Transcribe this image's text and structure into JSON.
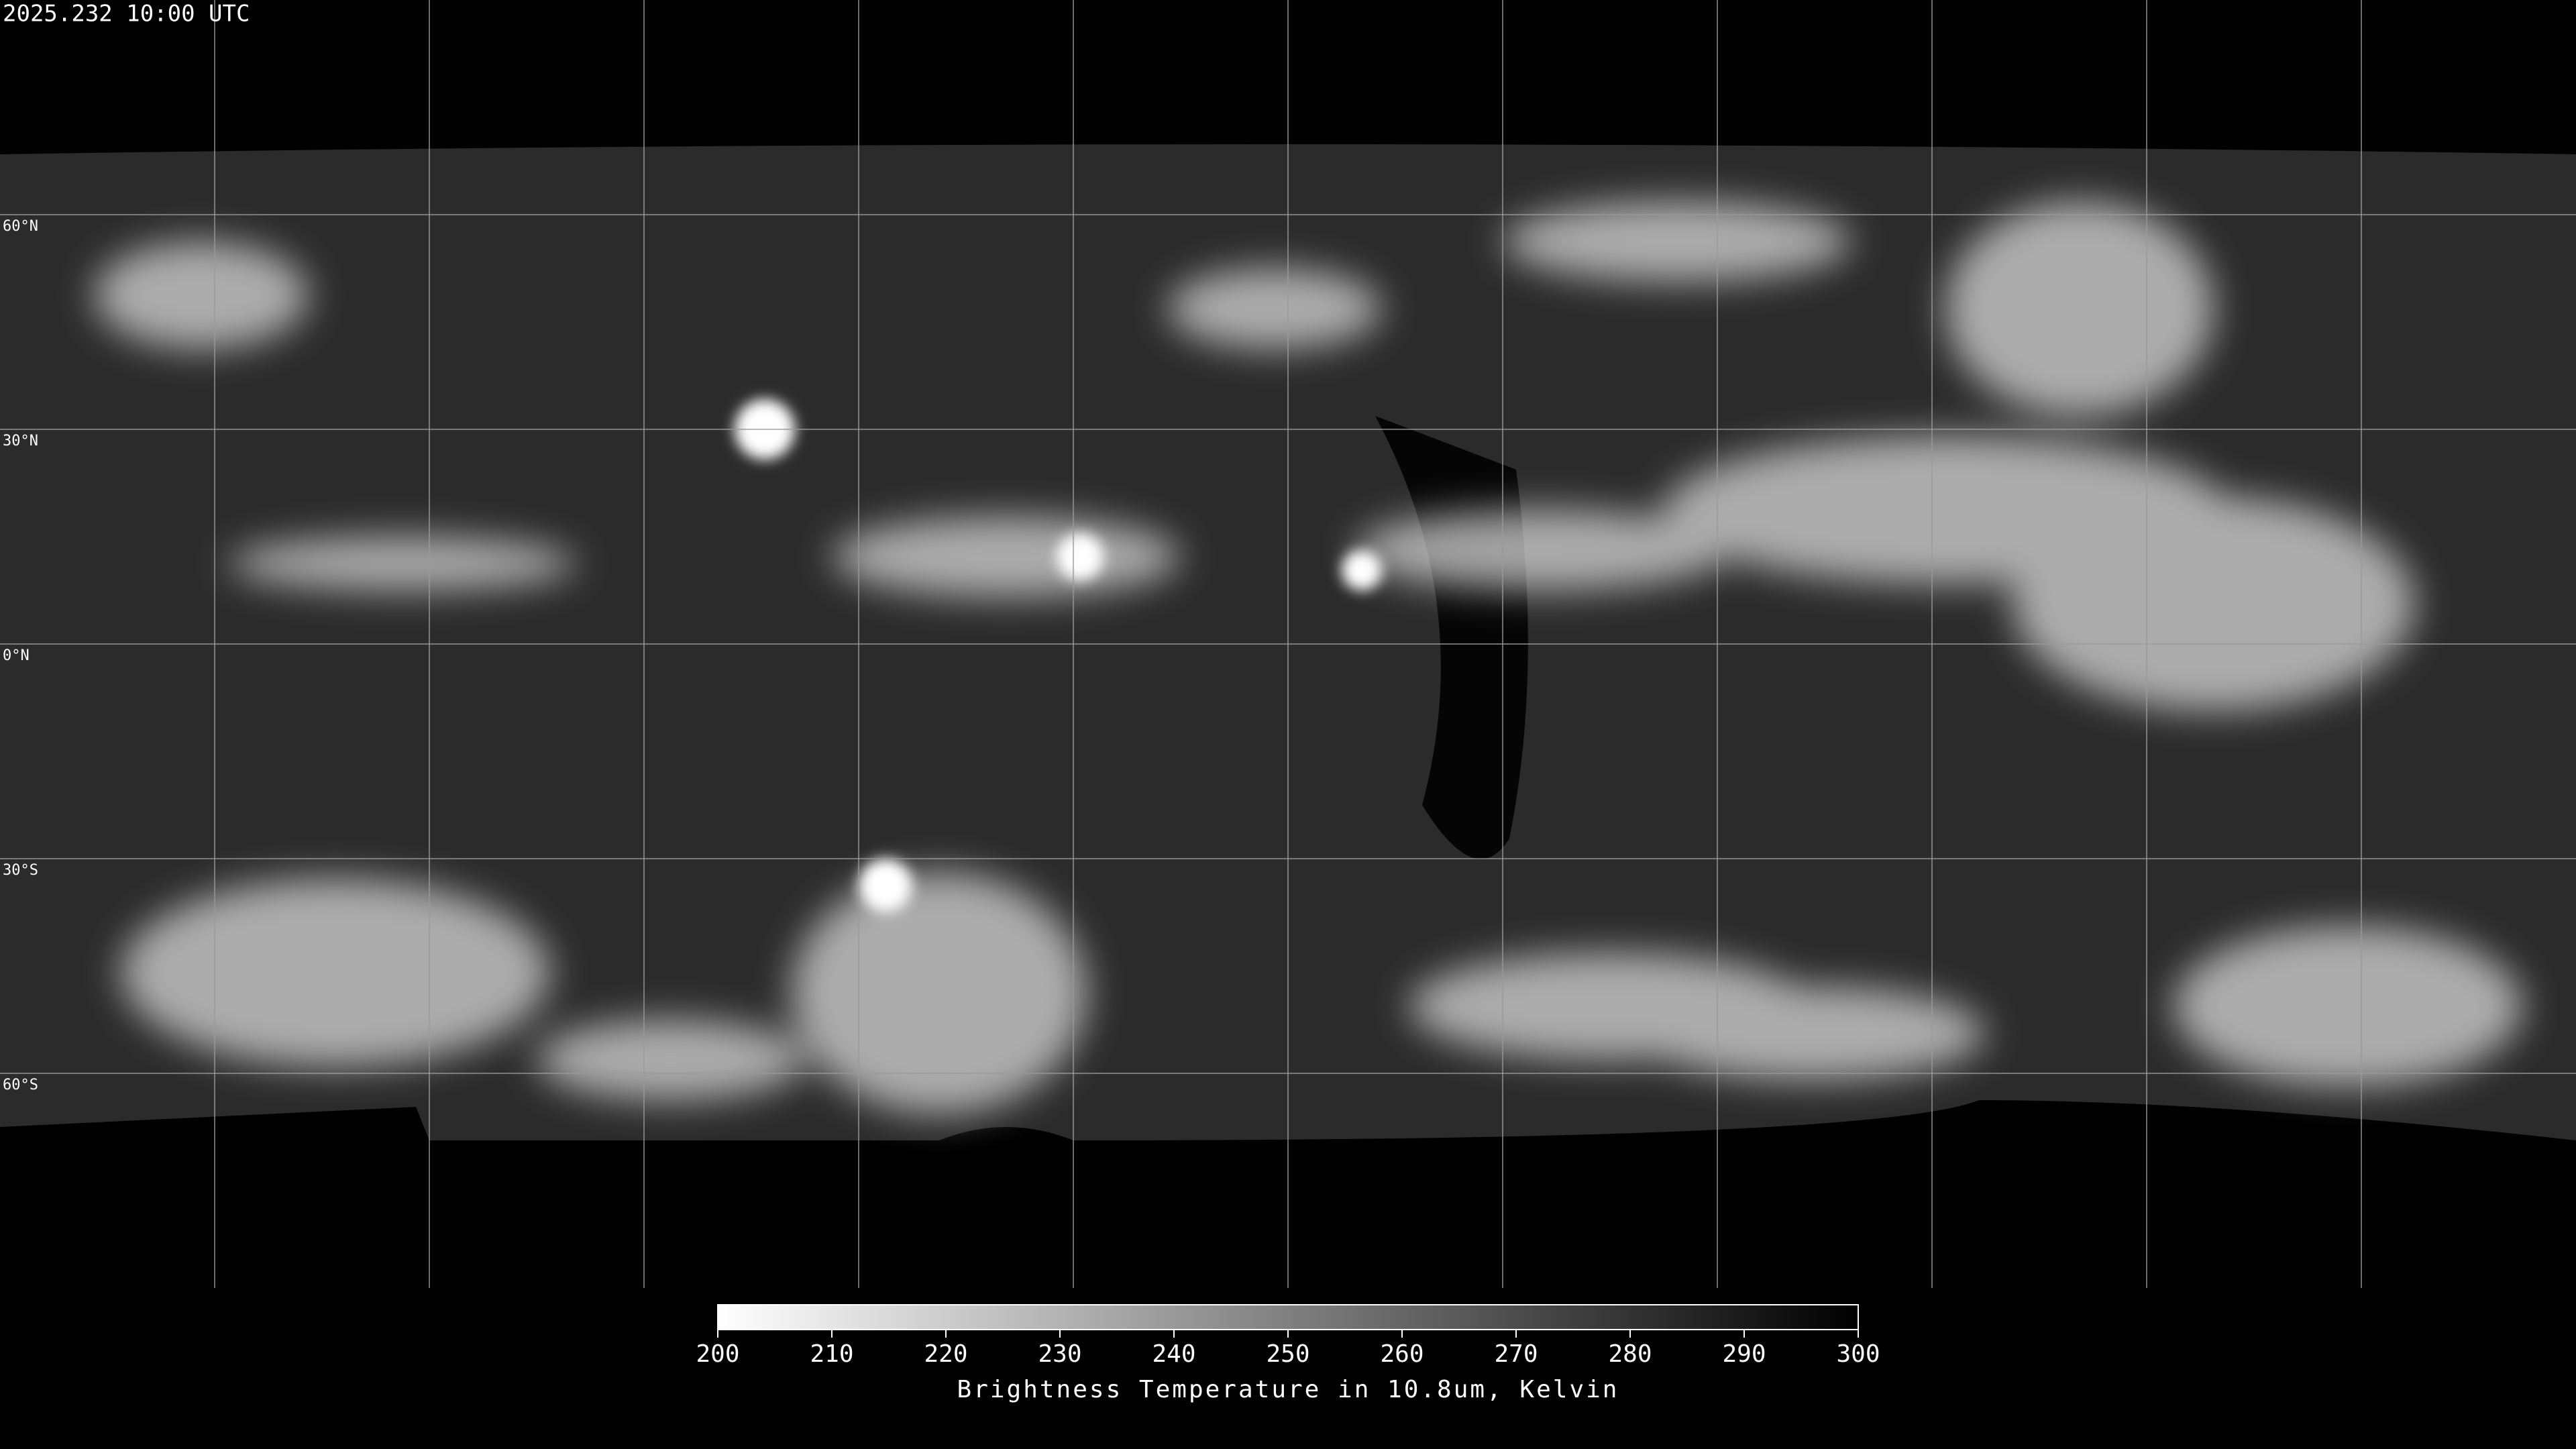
{
  "timestamp": "2025.232 10:00 UTC",
  "map": {
    "latitude_labels": [
      "60°N",
      "30°N",
      "0°N",
      "30°S",
      "60°S"
    ]
  },
  "chart_data": {
    "type": "colorbar",
    "title": "Brightness Temperature in 10.8um, Kelvin",
    "xlim": [
      200,
      300
    ],
    "xticks": [
      200,
      210,
      220,
      230,
      240,
      250,
      260,
      270,
      280,
      290,
      300
    ],
    "colormap": [
      "#ffffff",
      "#000000"
    ]
  }
}
